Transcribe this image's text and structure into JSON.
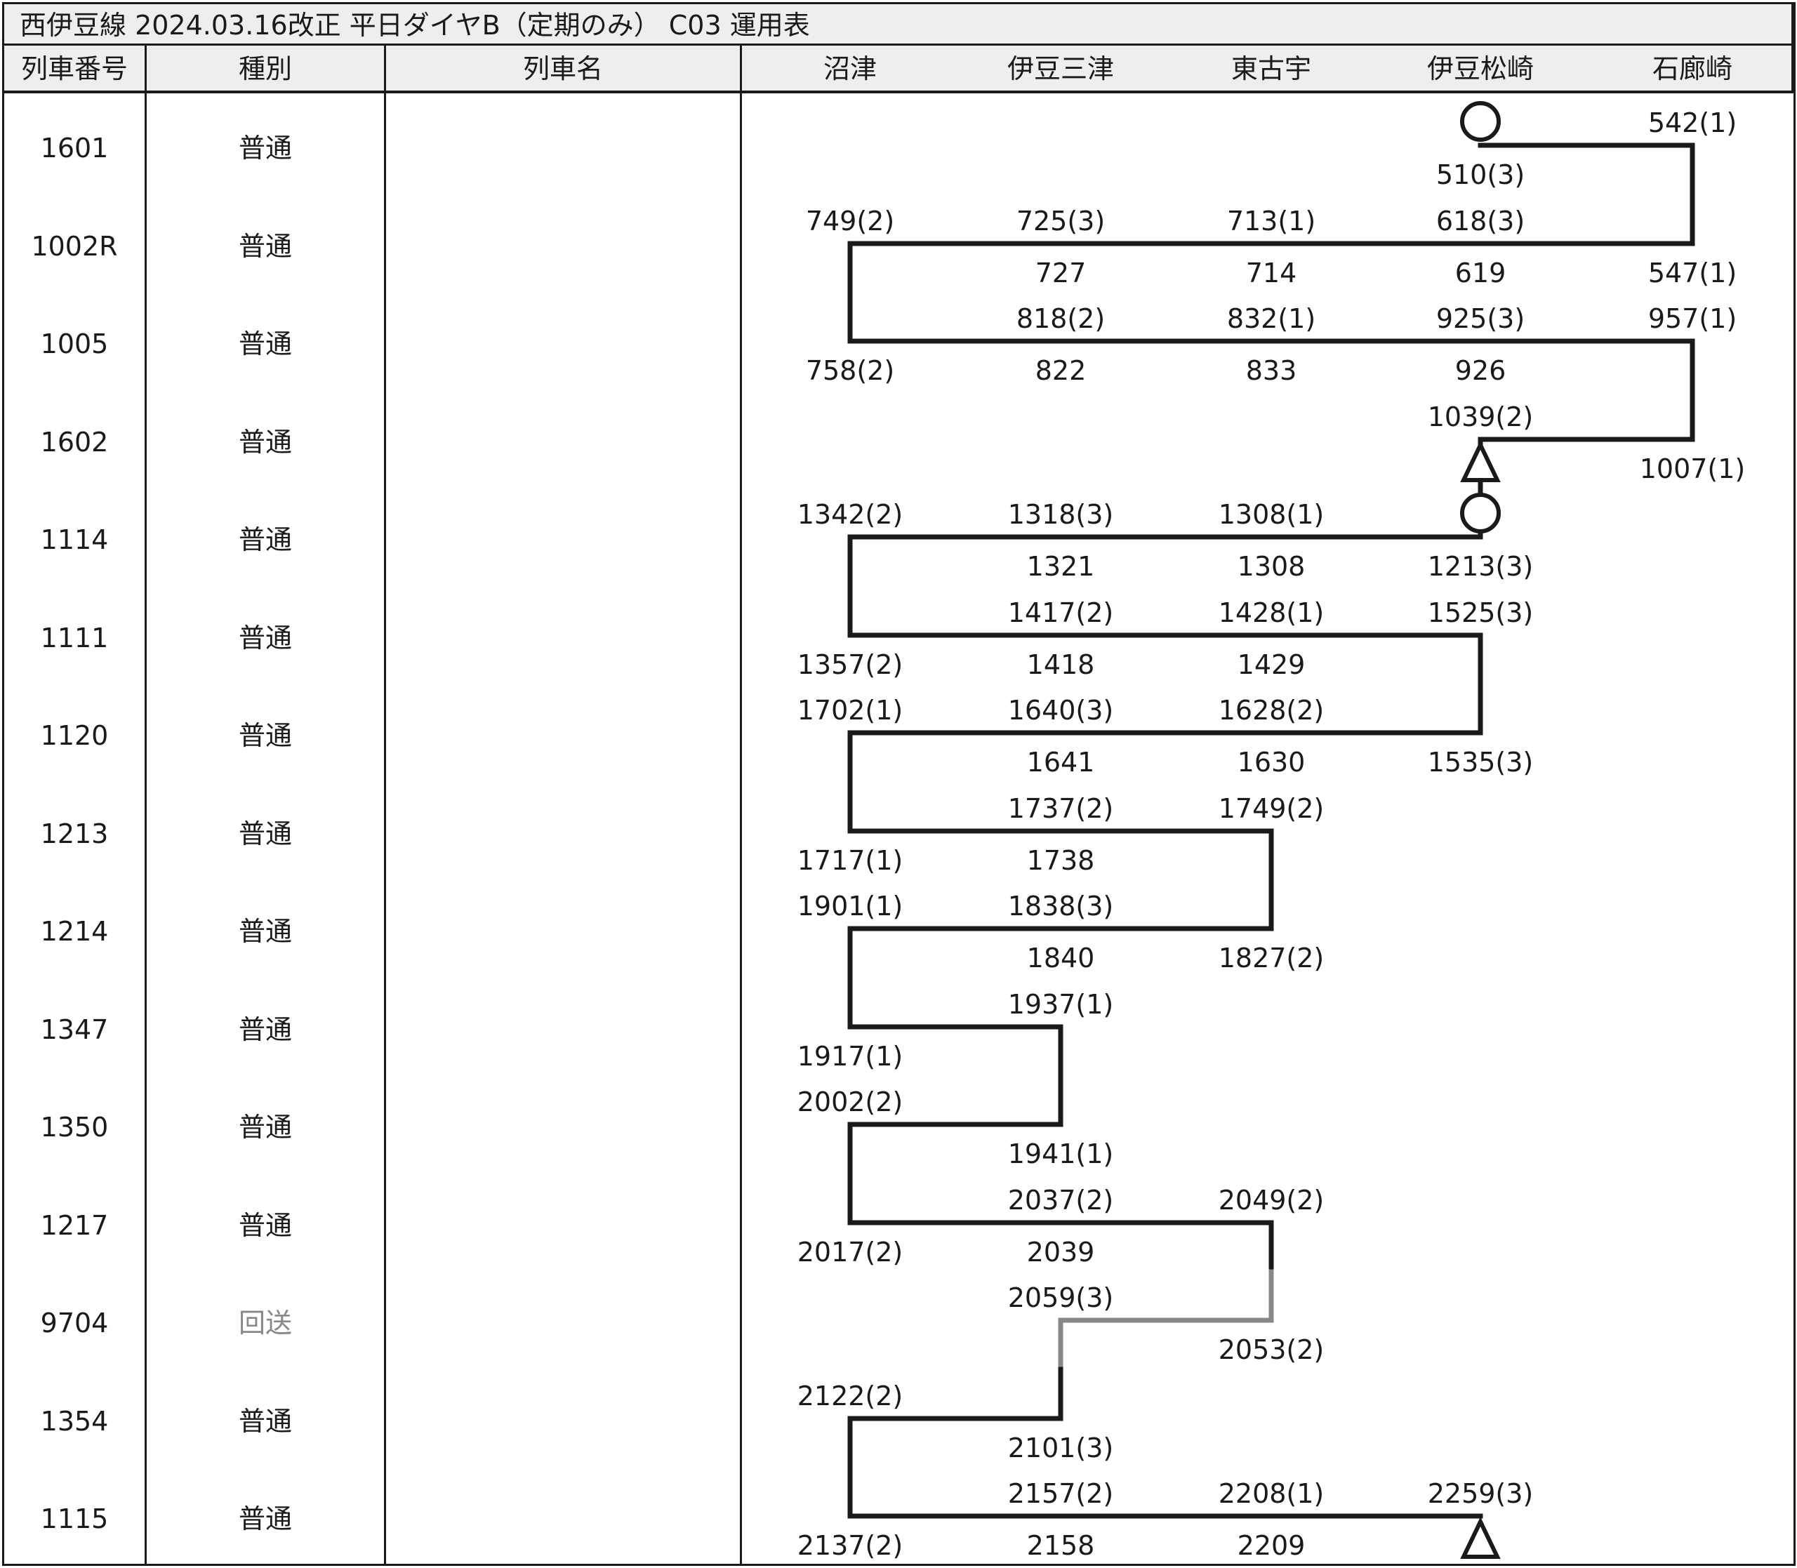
{
  "title": "西伊豆線 2024.03.16改正 平日ダイヤB（定期のみ） C03 運用表",
  "headers": {
    "train_no": "列車番号",
    "kind": "種別",
    "name": "列車名",
    "stations": [
      "沼津",
      "伊豆三津",
      "東古宇",
      "伊豆松崎",
      "石廊崎"
    ]
  },
  "colors": {
    "line": "#1a1a1a",
    "deadhead_line": "#888888",
    "header_bg": "#eeeeee"
  },
  "trains": [
    {
      "no": "1601",
      "kind": "普通",
      "name": ""
    },
    {
      "no": "1002R",
      "kind": "普通",
      "name": ""
    },
    {
      "no": "1005",
      "kind": "普通",
      "name": ""
    },
    {
      "no": "1602",
      "kind": "普通",
      "name": ""
    },
    {
      "no": "1114",
      "kind": "普通",
      "name": ""
    },
    {
      "no": "1111",
      "kind": "普通",
      "name": ""
    },
    {
      "no": "1120",
      "kind": "普通",
      "name": ""
    },
    {
      "no": "1213",
      "kind": "普通",
      "name": ""
    },
    {
      "no": "1214",
      "kind": "普通",
      "name": ""
    },
    {
      "no": "1347",
      "kind": "普通",
      "name": ""
    },
    {
      "no": "1350",
      "kind": "普通",
      "name": ""
    },
    {
      "no": "1217",
      "kind": "普通",
      "name": ""
    },
    {
      "no": "9704",
      "kind": "回送",
      "name": ""
    },
    {
      "no": "1354",
      "kind": "普通",
      "name": ""
    },
    {
      "no": "1115",
      "kind": "普通",
      "name": ""
    }
  ],
  "times": [
    {
      "row": 0,
      "station": 4,
      "pos": "above",
      "text": "542(1)"
    },
    {
      "row": 0,
      "station": 3,
      "pos": "below",
      "text": "510(3)"
    },
    {
      "row": 1,
      "station": 0,
      "pos": "above",
      "text": "749(2)"
    },
    {
      "row": 1,
      "station": 1,
      "pos": "above",
      "text": "725(3)"
    },
    {
      "row": 1,
      "station": 2,
      "pos": "above",
      "text": "713(1)"
    },
    {
      "row": 1,
      "station": 3,
      "pos": "above",
      "text": "618(3)"
    },
    {
      "row": 1,
      "station": 1,
      "pos": "below",
      "text": "727"
    },
    {
      "row": 1,
      "station": 2,
      "pos": "below",
      "text": "714"
    },
    {
      "row": 1,
      "station": 3,
      "pos": "below",
      "text": "619"
    },
    {
      "row": 1,
      "station": 4,
      "pos": "below",
      "text": "547(1)"
    },
    {
      "row": 2,
      "station": 1,
      "pos": "above",
      "text": "818(2)"
    },
    {
      "row": 2,
      "station": 2,
      "pos": "above",
      "text": "832(1)"
    },
    {
      "row": 2,
      "station": 3,
      "pos": "above",
      "text": "925(3)"
    },
    {
      "row": 2,
      "station": 4,
      "pos": "above",
      "text": "957(1)"
    },
    {
      "row": 2,
      "station": 0,
      "pos": "below",
      "text": "758(2)"
    },
    {
      "row": 2,
      "station": 1,
      "pos": "below",
      "text": "822"
    },
    {
      "row": 2,
      "station": 2,
      "pos": "below",
      "text": "833"
    },
    {
      "row": 2,
      "station": 3,
      "pos": "below",
      "text": "926"
    },
    {
      "row": 3,
      "station": 3,
      "pos": "above",
      "text": "1039(2)"
    },
    {
      "row": 3,
      "station": 4,
      "pos": "below",
      "text": "1007(1)"
    },
    {
      "row": 4,
      "station": 0,
      "pos": "above",
      "text": "1342(2)"
    },
    {
      "row": 4,
      "station": 1,
      "pos": "above",
      "text": "1318(3)"
    },
    {
      "row": 4,
      "station": 2,
      "pos": "above",
      "text": "1308(1)"
    },
    {
      "row": 4,
      "station": 1,
      "pos": "below",
      "text": "1321"
    },
    {
      "row": 4,
      "station": 2,
      "pos": "below",
      "text": "1308"
    },
    {
      "row": 4,
      "station": 3,
      "pos": "below",
      "text": "1213(3)"
    },
    {
      "row": 5,
      "station": 1,
      "pos": "above",
      "text": "1417(2)"
    },
    {
      "row": 5,
      "station": 2,
      "pos": "above",
      "text": "1428(1)"
    },
    {
      "row": 5,
      "station": 3,
      "pos": "above",
      "text": "1525(3)"
    },
    {
      "row": 5,
      "station": 0,
      "pos": "below",
      "text": "1357(2)"
    },
    {
      "row": 5,
      "station": 1,
      "pos": "below",
      "text": "1418"
    },
    {
      "row": 5,
      "station": 2,
      "pos": "below",
      "text": "1429"
    },
    {
      "row": 6,
      "station": 0,
      "pos": "above",
      "text": "1702(1)"
    },
    {
      "row": 6,
      "station": 1,
      "pos": "above",
      "text": "1640(3)"
    },
    {
      "row": 6,
      "station": 2,
      "pos": "above",
      "text": "1628(2)"
    },
    {
      "row": 6,
      "station": 1,
      "pos": "below",
      "text": "1641"
    },
    {
      "row": 6,
      "station": 2,
      "pos": "below",
      "text": "1630"
    },
    {
      "row": 6,
      "station": 3,
      "pos": "below",
      "text": "1535(3)"
    },
    {
      "row": 7,
      "station": 1,
      "pos": "above",
      "text": "1737(2)"
    },
    {
      "row": 7,
      "station": 2,
      "pos": "above",
      "text": "1749(2)"
    },
    {
      "row": 7,
      "station": 0,
      "pos": "below",
      "text": "1717(1)"
    },
    {
      "row": 7,
      "station": 1,
      "pos": "below",
      "text": "1738"
    },
    {
      "row": 8,
      "station": 0,
      "pos": "above",
      "text": "1901(1)"
    },
    {
      "row": 8,
      "station": 1,
      "pos": "above",
      "text": "1838(3)"
    },
    {
      "row": 8,
      "station": 1,
      "pos": "below",
      "text": "1840"
    },
    {
      "row": 8,
      "station": 2,
      "pos": "below",
      "text": "1827(2)"
    },
    {
      "row": 9,
      "station": 1,
      "pos": "above",
      "text": "1937(1)"
    },
    {
      "row": 9,
      "station": 0,
      "pos": "below",
      "text": "1917(1)"
    },
    {
      "row": 10,
      "station": 0,
      "pos": "above",
      "text": "2002(2)"
    },
    {
      "row": 10,
      "station": 1,
      "pos": "below",
      "text": "1941(1)"
    },
    {
      "row": 11,
      "station": 1,
      "pos": "above",
      "text": "2037(2)"
    },
    {
      "row": 11,
      "station": 2,
      "pos": "above",
      "text": "2049(2)"
    },
    {
      "row": 11,
      "station": 0,
      "pos": "below",
      "text": "2017(2)"
    },
    {
      "row": 11,
      "station": 1,
      "pos": "below",
      "text": "2039"
    },
    {
      "row": 12,
      "station": 1,
      "pos": "above",
      "text": "2059(3)"
    },
    {
      "row": 12,
      "station": 2,
      "pos": "below",
      "text": "2053(2)"
    },
    {
      "row": 13,
      "station": 0,
      "pos": "above",
      "text": "2122(2)"
    },
    {
      "row": 13,
      "station": 1,
      "pos": "below",
      "text": "2101(3)"
    },
    {
      "row": 14,
      "station": 1,
      "pos": "above",
      "text": "2157(2)"
    },
    {
      "row": 14,
      "station": 2,
      "pos": "above",
      "text": "2208(1)"
    },
    {
      "row": 14,
      "station": 3,
      "pos": "above",
      "text": "2259(3)"
    },
    {
      "row": 14,
      "station": 0,
      "pos": "below",
      "text": "2137(2)"
    },
    {
      "row": 14,
      "station": 1,
      "pos": "below",
      "text": "2158"
    },
    {
      "row": 14,
      "station": 2,
      "pos": "below",
      "text": "2209"
    }
  ],
  "trips": [
    {
      "row": 0,
      "from": 3,
      "to": 4,
      "kind": "revenue"
    },
    {
      "row": 1,
      "from": 4,
      "to": 0,
      "kind": "revenue"
    },
    {
      "row": 2,
      "from": 0,
      "to": 4,
      "kind": "revenue"
    },
    {
      "row": 3,
      "from": 4,
      "to": 3,
      "kind": "revenue"
    },
    {
      "row": 4,
      "from": 3,
      "to": 0,
      "kind": "revenue"
    },
    {
      "row": 5,
      "from": 0,
      "to": 3,
      "kind": "revenue"
    },
    {
      "row": 6,
      "from": 3,
      "to": 0,
      "kind": "revenue"
    },
    {
      "row": 7,
      "from": 0,
      "to": 2,
      "kind": "revenue"
    },
    {
      "row": 8,
      "from": 2,
      "to": 0,
      "kind": "revenue"
    },
    {
      "row": 9,
      "from": 0,
      "to": 1,
      "kind": "revenue"
    },
    {
      "row": 10,
      "from": 1,
      "to": 0,
      "kind": "revenue"
    },
    {
      "row": 11,
      "from": 0,
      "to": 2,
      "kind": "revenue"
    },
    {
      "row": 12,
      "from": 2,
      "to": 1,
      "kind": "deadhead"
    },
    {
      "row": 13,
      "from": 1,
      "to": 0,
      "kind": "revenue"
    },
    {
      "row": 14,
      "from": 0,
      "to": 3,
      "kind": "revenue"
    }
  ],
  "markers": [
    {
      "row": 0,
      "station": 3,
      "shape": "circle",
      "where": "start"
    },
    {
      "row": 3,
      "station": 3,
      "shape": "triangle",
      "where": "end"
    },
    {
      "row": 4,
      "station": 3,
      "shape": "circle",
      "where": "start"
    },
    {
      "row": 14,
      "station": 3,
      "shape": "triangle",
      "where": "end"
    }
  ]
}
